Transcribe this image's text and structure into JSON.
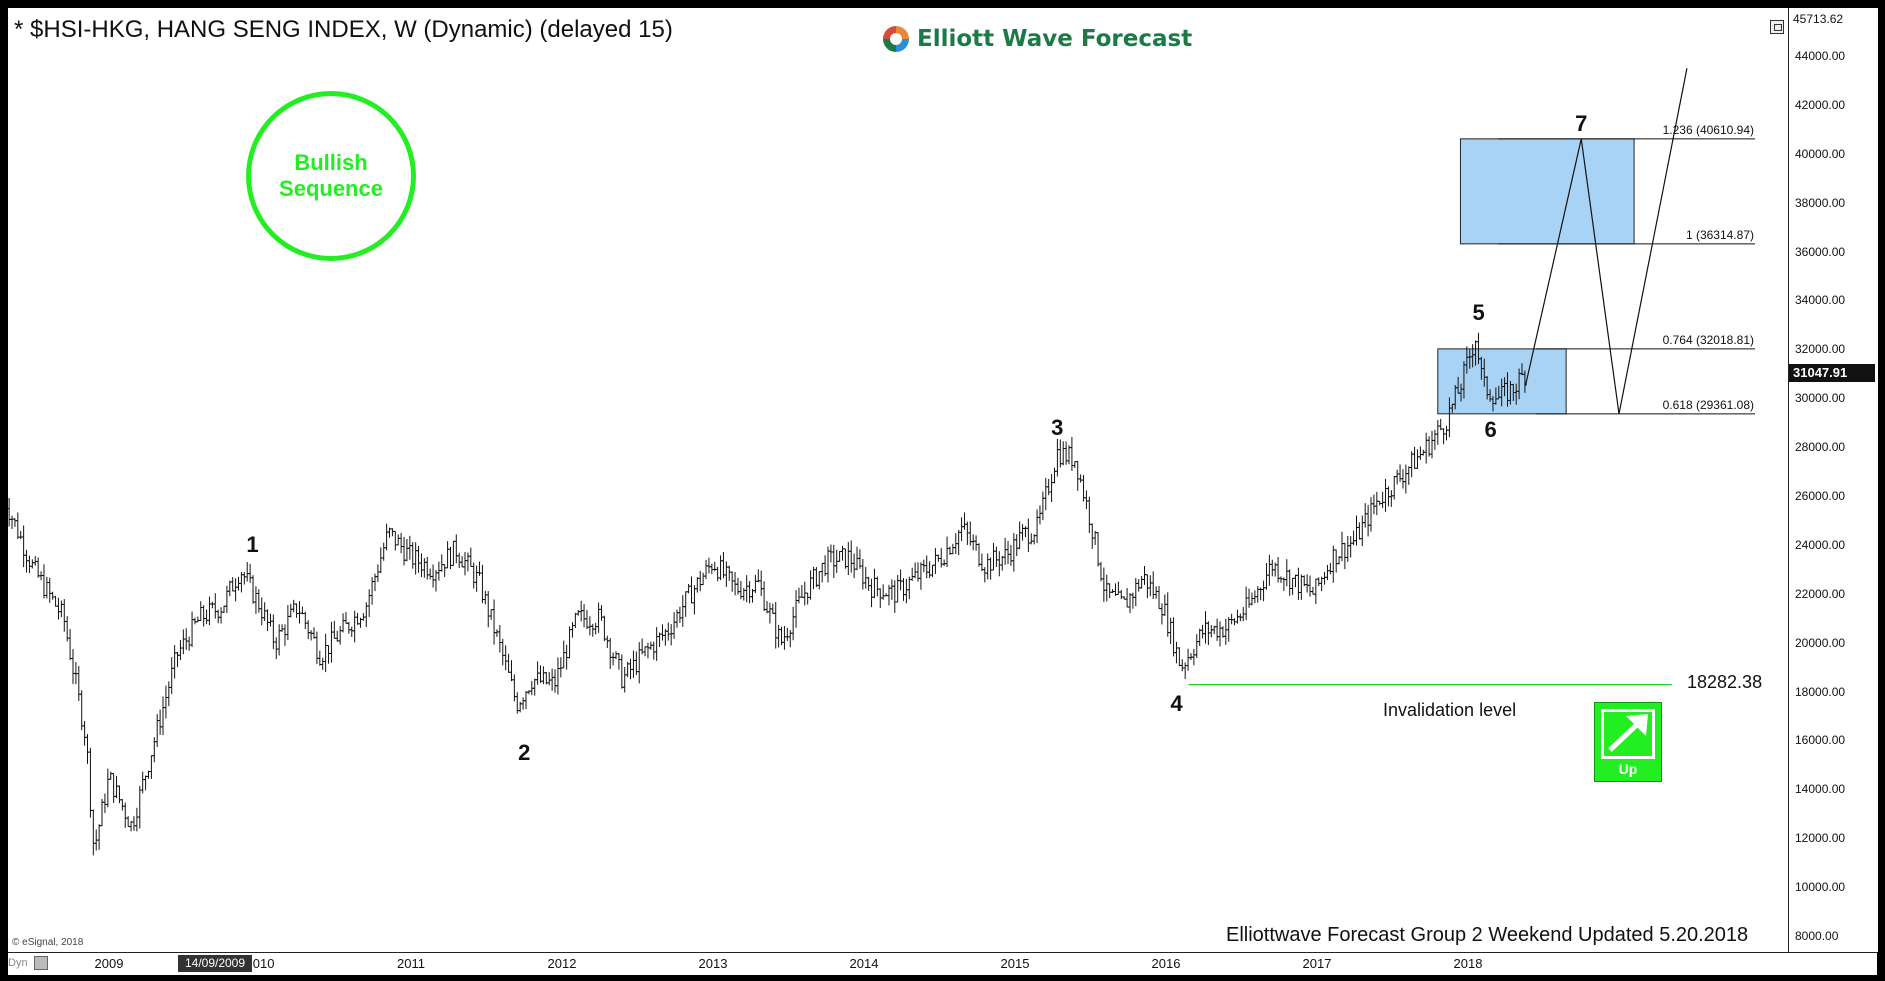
{
  "header": {
    "title": "* $HSI-HKG, HANG SENG INDEX, W (Dynamic) (delayed 15)",
    "logo_text": "Elliott Wave Forecast"
  },
  "badge": {
    "line1": "Bullish",
    "line2": "Sequence"
  },
  "chart_data": {
    "type": "ohlc",
    "title": "* $HSI-HKG, HANG SENG INDEX, W (Dynamic) (delayed 15)",
    "x_tick_labels": [
      "2009",
      "2010",
      "2011",
      "2012",
      "2013",
      "2014",
      "2015",
      "2016",
      "2017",
      "2018"
    ],
    "y_tick_labels": [
      "44000.00",
      "42000.00",
      "40000.00",
      "38000.00",
      "36000.00",
      "34000.00",
      "32000.00",
      "30000.00",
      "28000.00",
      "26000.00",
      "24000.00",
      "22000.00",
      "20000.00",
      "18000.00",
      "16000.00",
      "14000.00",
      "12000.00",
      "10000.00",
      "8000.00"
    ],
    "y_ticks": [
      44000,
      42000,
      40000,
      38000,
      36000,
      34000,
      32000,
      30000,
      28000,
      26000,
      24000,
      22000,
      20000,
      18000,
      16000,
      14000,
      12000,
      10000,
      8000
    ],
    "ylim": [
      7500,
      45713.62
    ],
    "y_top_label": "45713.62",
    "last_price": 31047.91,
    "last_price_label": "31047.91",
    "cursor_date": "14/09/2009",
    "series_close_path": [
      {
        "x": 2008.3,
        "y": 26000
      },
      {
        "x": 2008.5,
        "y": 23000
      },
      {
        "x": 2008.7,
        "y": 21000
      },
      {
        "x": 2008.85,
        "y": 16000
      },
      {
        "x": 2008.9,
        "y": 11500
      },
      {
        "x": 2009.0,
        "y": 14500
      },
      {
        "x": 2009.15,
        "y": 12500
      },
      {
        "x": 2009.3,
        "y": 16000
      },
      {
        "x": 2009.45,
        "y": 19500
      },
      {
        "x": 2009.6,
        "y": 21000
      },
      {
        "x": 2009.75,
        "y": 21500
      },
      {
        "x": 2009.87,
        "y": 23000
      },
      {
        "x": 2010.0,
        "y": 21500
      },
      {
        "x": 2010.1,
        "y": 20000
      },
      {
        "x": 2010.25,
        "y": 21500
      },
      {
        "x": 2010.4,
        "y": 19500
      },
      {
        "x": 2010.55,
        "y": 20500
      },
      {
        "x": 2010.7,
        "y": 21500
      },
      {
        "x": 2010.85,
        "y": 24500
      },
      {
        "x": 2011.0,
        "y": 23500
      },
      {
        "x": 2011.15,
        "y": 23000
      },
      {
        "x": 2011.3,
        "y": 23800
      },
      {
        "x": 2011.45,
        "y": 22500
      },
      {
        "x": 2011.58,
        "y": 20000
      },
      {
        "x": 2011.7,
        "y": 17500
      },
      {
        "x": 2011.8,
        "y": 18500
      },
      {
        "x": 2011.95,
        "y": 18300
      },
      {
        "x": 2012.1,
        "y": 21000
      },
      {
        "x": 2012.25,
        "y": 21000
      },
      {
        "x": 2012.4,
        "y": 18500
      },
      {
        "x": 2012.55,
        "y": 19600
      },
      {
        "x": 2012.7,
        "y": 20500
      },
      {
        "x": 2012.85,
        "y": 22000
      },
      {
        "x": 2013.0,
        "y": 23300
      },
      {
        "x": 2013.15,
        "y": 22200
      },
      {
        "x": 2013.3,
        "y": 22400
      },
      {
        "x": 2013.45,
        "y": 20000
      },
      {
        "x": 2013.6,
        "y": 22000
      },
      {
        "x": 2013.75,
        "y": 23300
      },
      {
        "x": 2013.9,
        "y": 23500
      },
      {
        "x": 2014.05,
        "y": 22300
      },
      {
        "x": 2014.2,
        "y": 22000
      },
      {
        "x": 2014.35,
        "y": 22700
      },
      {
        "x": 2014.5,
        "y": 23400
      },
      {
        "x": 2014.65,
        "y": 24700
      },
      {
        "x": 2014.8,
        "y": 23200
      },
      {
        "x": 2014.95,
        "y": 23600
      },
      {
        "x": 2015.05,
        "y": 24400
      },
      {
        "x": 2015.15,
        "y": 24700
      },
      {
        "x": 2015.28,
        "y": 27800
      },
      {
        "x": 2015.4,
        "y": 27500
      },
      {
        "x": 2015.5,
        "y": 25000
      },
      {
        "x": 2015.6,
        "y": 22000
      },
      {
        "x": 2015.72,
        "y": 21500
      },
      {
        "x": 2015.85,
        "y": 22700
      },
      {
        "x": 2015.98,
        "y": 21500
      },
      {
        "x": 2016.1,
        "y": 19000
      },
      {
        "x": 2016.25,
        "y": 20500
      },
      {
        "x": 2016.4,
        "y": 20600
      },
      {
        "x": 2016.55,
        "y": 21500
      },
      {
        "x": 2016.7,
        "y": 23200
      },
      {
        "x": 2016.85,
        "y": 22500
      },
      {
        "x": 2016.98,
        "y": 22000
      },
      {
        "x": 2017.1,
        "y": 23500
      },
      {
        "x": 2017.25,
        "y": 24200
      },
      {
        "x": 2017.4,
        "y": 25800
      },
      {
        "x": 2017.55,
        "y": 26800
      },
      {
        "x": 2017.7,
        "y": 27800
      },
      {
        "x": 2017.85,
        "y": 29000
      },
      {
        "x": 2017.95,
        "y": 30500
      },
      {
        "x": 2018.05,
        "y": 32500
      },
      {
        "x": 2018.1,
        "y": 30500
      },
      {
        "x": 2018.2,
        "y": 30000
      },
      {
        "x": 2018.3,
        "y": 30400
      },
      {
        "x": 2018.38,
        "y": 31047.91
      }
    ],
    "wave_labels": [
      {
        "label": "1",
        "x": 2009.95,
        "y": 24000
      },
      {
        "label": "2",
        "x": 2011.75,
        "y": 15500
      },
      {
        "label": "3",
        "x": 2015.28,
        "y": 28800
      },
      {
        "label": "4",
        "x": 2016.07,
        "y": 17500
      },
      {
        "label": "5",
        "x": 2018.07,
        "y": 33500
      },
      {
        "label": "6",
        "x": 2018.15,
        "y": 28700
      },
      {
        "label": "7",
        "x": 2018.75,
        "y": 41200
      }
    ],
    "projection_path": [
      {
        "x": 2018.38,
        "y": 30500
      },
      {
        "x": 2018.75,
        "y": 40610.94
      },
      {
        "x": 2019.0,
        "y": 29361.08
      },
      {
        "x": 2019.45,
        "y": 43500
      }
    ],
    "target_boxes": [
      {
        "name": "wave-6-zone",
        "x0": 2017.8,
        "x1": 2018.65,
        "y0": 29361.08,
        "y1": 32018.81
      },
      {
        "name": "wave-7-zone",
        "x0": 2017.95,
        "x1": 2019.1,
        "y0": 36314.87,
        "y1": 40610.94
      }
    ],
    "fib_levels": [
      {
        "label": "1.236 (40610.94)",
        "value": 40610.94
      },
      {
        "label": "1 (36314.87)",
        "value": 36314.87
      },
      {
        "label": "0.764 (32018.81)",
        "value": 32018.81
      },
      {
        "label": "0.618 (29361.08)",
        "value": 29361.08
      }
    ],
    "invalidation": {
      "value": 18282.38,
      "value_label": "18282.38",
      "label": "Invalidation level",
      "x0": 2016.15,
      "x1": 2019.35
    },
    "colors": {
      "bars": "#111111",
      "box_fill": "#a9d3f5",
      "box_stroke": "#222222",
      "invalidation_line": "#22cc22",
      "badge": "#22ee22"
    }
  },
  "up_badge": {
    "text": "Up"
  },
  "footer": {
    "text": "Elliottwave Forecast Group 2 Weekend Updated 5.20.2018",
    "esignal": "© eSignal, 2018",
    "dyn": "Dyn"
  }
}
